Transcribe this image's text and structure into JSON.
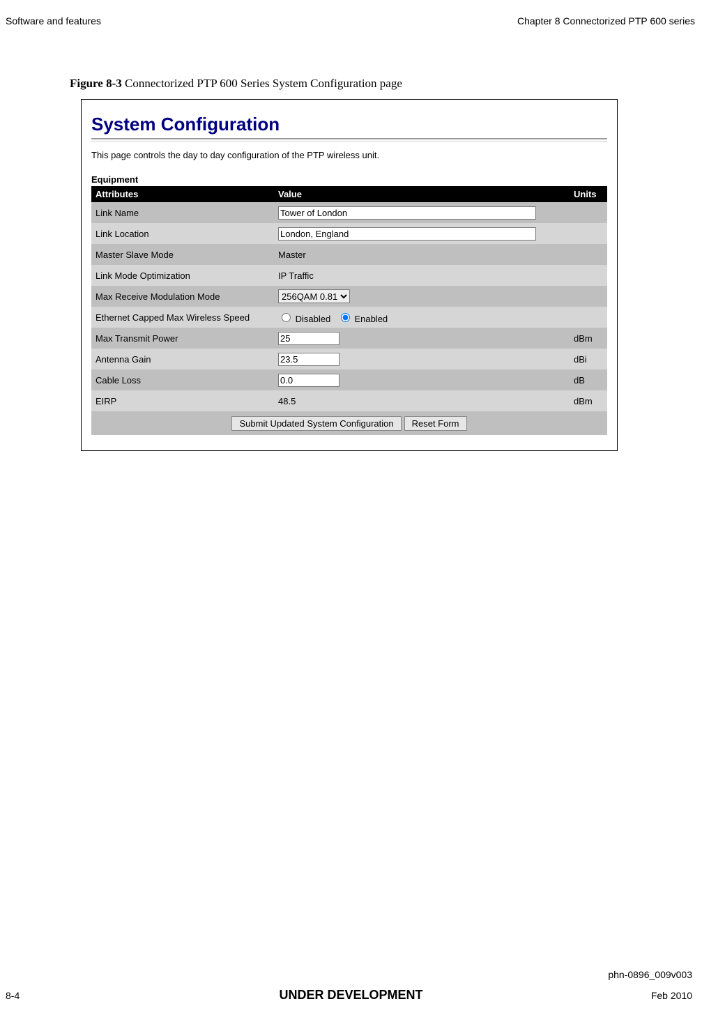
{
  "header": {
    "left": "Software and features",
    "right": "Chapter 8 Connectorized PTP 600 series"
  },
  "caption": {
    "strong": "Figure 8-3",
    "rest": "  Connectorized PTP 600 Series System Configuration page"
  },
  "panel": {
    "title": "System Configuration",
    "description": "This page controls the day to day configuration of the PTP wireless unit.",
    "section": "Equipment",
    "columns": {
      "attr": "Attributes",
      "value": "Value",
      "units": "Units"
    },
    "rows": [
      {
        "attr": "Link Name",
        "kind": "text",
        "value": "Tower of London",
        "units": "",
        "wide": true
      },
      {
        "attr": "Link Location",
        "kind": "text",
        "value": "London, England",
        "units": "",
        "wide": true
      },
      {
        "attr": "Master Slave Mode",
        "kind": "static",
        "value": "Master",
        "units": ""
      },
      {
        "attr": "Link Mode Optimization",
        "kind": "static",
        "value": "IP Traffic",
        "units": ""
      },
      {
        "attr": "Max Receive Modulation Mode",
        "kind": "select",
        "value": "256QAM 0.81",
        "units": ""
      },
      {
        "attr": "Ethernet Capped Max Wireless Speed",
        "kind": "radio",
        "options": [
          "Disabled",
          "Enabled"
        ],
        "selected": "Enabled",
        "units": ""
      },
      {
        "attr": "Max Transmit Power",
        "kind": "text",
        "value": "25",
        "units": "dBm"
      },
      {
        "attr": "Antenna Gain",
        "kind": "text",
        "value": "23.5",
        "units": "dBi"
      },
      {
        "attr": "Cable Loss",
        "kind": "text",
        "value": "0.0",
        "units": "dB"
      },
      {
        "attr": "EIRP",
        "kind": "static",
        "value": "48.5",
        "units": "dBm"
      }
    ],
    "buttons": {
      "submit": "Submit Updated System Configuration",
      "reset": "Reset Form"
    }
  },
  "footer": {
    "docid": "phn-0896_009v003",
    "page": "8-4",
    "mid": "UNDER DEVELOPMENT",
    "date": "Feb 2010"
  }
}
